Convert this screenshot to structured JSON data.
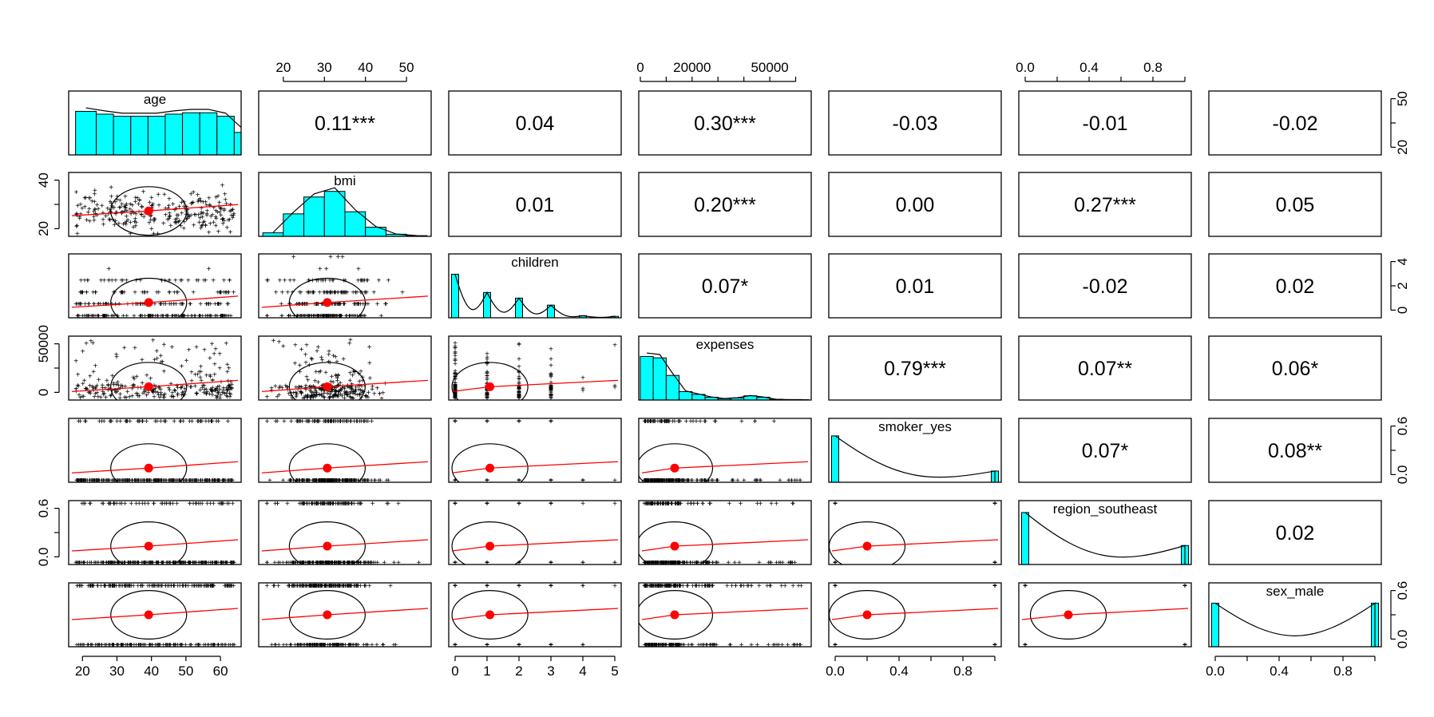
{
  "chart_data": {
    "type": "pairs_panel",
    "variables": [
      "age",
      "bmi",
      "children",
      "expenses",
      "smoker_yes",
      "region_southeast",
      "sex_male"
    ],
    "colors": {
      "histogram_fill": "#00ffff",
      "fit_line": "#ff0000",
      "mean_point": "#ff0000",
      "points": "#000000",
      "ellipse": "#000000"
    },
    "axes": [
      {
        "var": "age",
        "range": [
          16,
          66
        ],
        "ticks": [
          20,
          30,
          40,
          50,
          60
        ],
        "tick_labels": [
          "20",
          "30",
          "40",
          "50",
          "60"
        ]
      },
      {
        "var": "bmi",
        "range": [
          14,
          56
        ],
        "ticks": [
          20,
          30,
          40,
          50
        ],
        "tick_labels": [
          "20",
          "30",
          "40",
          "50"
        ]
      },
      {
        "var": "children",
        "range": [
          -0.2,
          5.2
        ],
        "ticks": [
          0,
          1,
          2,
          3,
          4,
          5
        ],
        "tick_labels": [
          "0",
          "1",
          "2",
          "3",
          "4",
          "5"
        ]
      },
      {
        "var": "expenses",
        "range": [
          -600,
          66000
        ],
        "ticks": [
          0,
          20000,
          50000
        ],
        "tick_labels": [
          "0",
          "20000",
          "50000"
        ],
        "minor_ticks": [
          10000,
          30000,
          40000,
          60000
        ]
      },
      {
        "var": "smoker_yes",
        "range": [
          -0.04,
          1.04
        ],
        "ticks": [
          0,
          0.2,
          0.4,
          0.6,
          0.8,
          1.0
        ],
        "tick_labels": [
          "0.0",
          "",
          "0.4",
          "",
          "0.8",
          ""
        ]
      },
      {
        "var": "region_southeast",
        "range": [
          -0.04,
          1.04
        ],
        "ticks": [
          0,
          0.2,
          0.4,
          0.6,
          0.8,
          1.0
        ],
        "tick_labels": [
          "0.0",
          "",
          "0.4",
          "",
          "0.8",
          ""
        ]
      },
      {
        "var": "sex_male",
        "range": [
          -0.04,
          1.04
        ],
        "ticks": [
          0,
          0.2,
          0.4,
          0.6,
          0.8,
          1.0
        ],
        "tick_labels": [
          "0.0",
          "",
          "0.4",
          "",
          "0.8",
          ""
        ]
      }
    ],
    "side_axes": {
      "age": [
        "20",
        "",
        "50"
      ],
      "bmi": [
        "20",
        "",
        "40"
      ],
      "children": [
        "0",
        "2",
        "4"
      ],
      "expenses": [
        "0",
        "",
        "50000"
      ],
      "smoker_yes": [
        "0.0",
        "",
        "0.6"
      ],
      "region_southeast": [
        "0.0",
        "",
        "0.6"
      ],
      "sex_male": [
        "0.0",
        "",
        "0.6"
      ]
    },
    "correlations": [
      [
        "",
        "0.11***",
        "0.04",
        "0.30***",
        "-0.03",
        "-0.01",
        "-0.02"
      ],
      [
        "",
        "",
        "0.01",
        "0.20***",
        "0.00",
        "0.27***",
        "0.05"
      ],
      [
        "",
        "",
        "",
        "0.07*",
        "0.01",
        "-0.02",
        "0.02"
      ],
      [
        "",
        "",
        "",
        "",
        "0.79***",
        "0.07**",
        "0.06*"
      ],
      [
        "",
        "",
        "",
        "",
        "",
        "0.07*",
        "0.08**"
      ],
      [
        "",
        "",
        "",
        "",
        "",
        "",
        "0.02"
      ],
      [
        "",
        "",
        "",
        "",
        "",
        "",
        ""
      ]
    ],
    "means": {
      "age": 39.2,
      "bmi": 30.7,
      "children": 1.09,
      "expenses": 13270,
      "smoker_yes": 0.2,
      "region_southeast": 0.27,
      "sex_male": 0.5
    },
    "histograms": {
      "age": {
        "bins": [
          18,
          24,
          29,
          34,
          39,
          44,
          49,
          54,
          59,
          64
        ],
        "heights": [
          0.62,
          0.58,
          0.55,
          0.55,
          0.55,
          0.58,
          0.6,
          0.6,
          0.55,
          0.32
        ]
      },
      "bmi": {
        "bins": [
          15,
          20,
          25,
          30,
          35,
          40,
          45,
          50,
          55
        ],
        "heights": [
          0.05,
          0.32,
          0.56,
          0.64,
          0.35,
          0.13,
          0.03,
          0.01
        ]
      },
      "children": {
        "bars": [
          0,
          1,
          2,
          3,
          4,
          5
        ],
        "heights": [
          0.62,
          0.36,
          0.28,
          0.18,
          0.03,
          0.02
        ]
      },
      "expenses": {
        "bins": [
          0,
          5000,
          10000,
          15000,
          20000,
          25000,
          30000,
          35000,
          40000,
          45000,
          50000,
          55000,
          60000,
          65000
        ],
        "heights": [
          0.62,
          0.6,
          0.35,
          0.12,
          0.08,
          0.04,
          0.02,
          0.03,
          0.06,
          0.04,
          0.01,
          0.005,
          0.005
        ]
      },
      "smoker_yes": {
        "bars": [
          0,
          1
        ],
        "heights": [
          0.66,
          0.16
        ]
      },
      "region_southeast": {
        "bars": [
          0,
          1
        ],
        "heights": [
          0.74,
          0.27
        ]
      },
      "sex_male": {
        "bars": [
          0,
          1
        ],
        "heights": [
          0.62,
          0.62
        ]
      }
    }
  }
}
